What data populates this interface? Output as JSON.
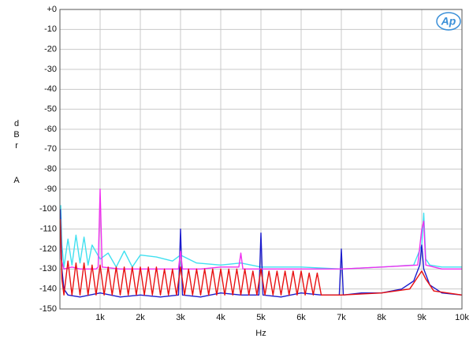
{
  "chart_data": {
    "type": "line",
    "logo": "Ap",
    "xlabel": "Hz",
    "ylabel": "dBr",
    "ylabel_unit": "A",
    "xlim": [
      0,
      10000
    ],
    "ylim": [
      -150,
      0
    ],
    "xticks": [
      {
        "value": 1000,
        "label": "1k"
      },
      {
        "value": 2000,
        "label": "2k"
      },
      {
        "value": 3000,
        "label": "3k"
      },
      {
        "value": 4000,
        "label": "4k"
      },
      {
        "value": 5000,
        "label": "5k"
      },
      {
        "value": 6000,
        "label": "6k"
      },
      {
        "value": 7000,
        "label": "7k"
      },
      {
        "value": 8000,
        "label": "8k"
      },
      {
        "value": 9000,
        "label": "9k"
      },
      {
        "value": 10000,
        "label": "10k"
      }
    ],
    "yticks": [
      {
        "value": 0,
        "label": "+0"
      },
      -10,
      -20,
      -30,
      -40,
      -50,
      -60,
      -70,
      -80,
      -90,
      -100,
      -110,
      -120,
      -130,
      -140,
      -150
    ],
    "grid": true,
    "series": [
      {
        "color": "#40e0f0",
        "x": [
          20,
          50,
          100,
          200,
          300,
          400,
          500,
          600,
          700,
          800,
          1000,
          1200,
          1400,
          1600,
          1800,
          2000,
          2400,
          2800,
          3000,
          3400,
          4000,
          4500,
          5000,
          6000,
          7000,
          8000,
          8800,
          9000,
          9050,
          9100,
          9200,
          9500,
          10000
        ],
        "values": [
          -98,
          -118,
          -129,
          -115,
          -128,
          -113,
          -127,
          -114,
          -128,
          -118,
          -125,
          -122,
          -129,
          -121,
          -129,
          -123,
          -124,
          -126,
          -123,
          -127,
          -128,
          -127,
          -129,
          -129,
          -130,
          -129,
          -128,
          -118,
          -102,
          -125,
          -128,
          -129,
          -129
        ]
      },
      {
        "color": "#1c1ccc",
        "x": [
          10,
          50,
          100,
          200,
          500,
          1000,
          1500,
          2000,
          2500,
          2950,
          3000,
          3050,
          3500,
          4000,
          4500,
          4950,
          5000,
          5050,
          5500,
          6000,
          6500,
          6950,
          7000,
          7050,
          7500,
          8000,
          8500,
          8800,
          8950,
          9000,
          9050,
          9200,
          9500,
          10000
        ],
        "values": [
          -100,
          -130,
          -140,
          -143,
          -144,
          -142,
          -144,
          -143,
          -144,
          -143,
          -110,
          -143,
          -144,
          -142,
          -143,
          -143,
          -112,
          -143,
          -144,
          -142,
          -143,
          -143,
          -120,
          -143,
          -142,
          -142,
          -140,
          -136,
          -128,
          -118,
          -130,
          -138,
          -142,
          -143
        ]
      },
      {
        "color": "#f030f0",
        "x": [
          10,
          30,
          100,
          300,
          500,
          900,
          950,
          1000,
          1050,
          1500,
          2000,
          2500,
          2950,
          3000,
          3050,
          3500,
          4000,
          4450,
          4500,
          4550,
          5000,
          6000,
          7000,
          8000,
          8900,
          9000,
          9050,
          9100,
          9500,
          10000
        ],
        "values": [
          -105,
          -125,
          -130,
          -129,
          -130,
          -130,
          -129,
          -90,
          -129,
          -130,
          -130,
          -130,
          -130,
          -121,
          -130,
          -130,
          -129,
          -129,
          -122,
          -130,
          -130,
          -130,
          -130,
          -129,
          -128,
          -110,
          -106,
          -128,
          -130,
          -130
        ]
      },
      {
        "color": "#e81010",
        "x": [
          10,
          50,
          100,
          200,
          300,
          400,
          500,
          600,
          700,
          800,
          900,
          1000,
          1100,
          1200,
          1300,
          1400,
          1500,
          1600,
          1700,
          1800,
          1900,
          2000,
          2100,
          2200,
          2300,
          2400,
          2500,
          2600,
          2700,
          2800,
          2900,
          3000,
          3100,
          3200,
          3300,
          3400,
          3500,
          3600,
          3700,
          3800,
          3900,
          4000,
          4100,
          4200,
          4300,
          4400,
          4500,
          4600,
          4700,
          4800,
          4900,
          5000,
          5100,
          5200,
          5300,
          5400,
          5500,
          5600,
          5700,
          5800,
          5900,
          6000,
          6100,
          6200,
          6300,
          6400,
          6500,
          7000,
          8000,
          8700,
          8900,
          9000,
          9100,
          9300,
          10000
        ],
        "values": [
          -105,
          -135,
          -143,
          -126,
          -143,
          -127,
          -143,
          -127,
          -143,
          -128,
          -143,
          -128,
          -143,
          -129,
          -143,
          -129,
          -143,
          -129,
          -143,
          -129,
          -143,
          -129,
          -143,
          -129,
          -143,
          -129,
          -143,
          -130,
          -143,
          -130,
          -143,
          -129,
          -143,
          -130,
          -143,
          -130,
          -143,
          -130,
          -143,
          -130,
          -143,
          -130,
          -143,
          -130,
          -143,
          -130,
          -143,
          -130,
          -143,
          -131,
          -143,
          -130,
          -143,
          -131,
          -143,
          -131,
          -143,
          -131,
          -143,
          -131,
          -143,
          -131,
          -143,
          -132,
          -143,
          -132,
          -143,
          -143,
          -142,
          -140,
          -134,
          -131,
          -135,
          -141,
          -143
        ]
      }
    ]
  }
}
